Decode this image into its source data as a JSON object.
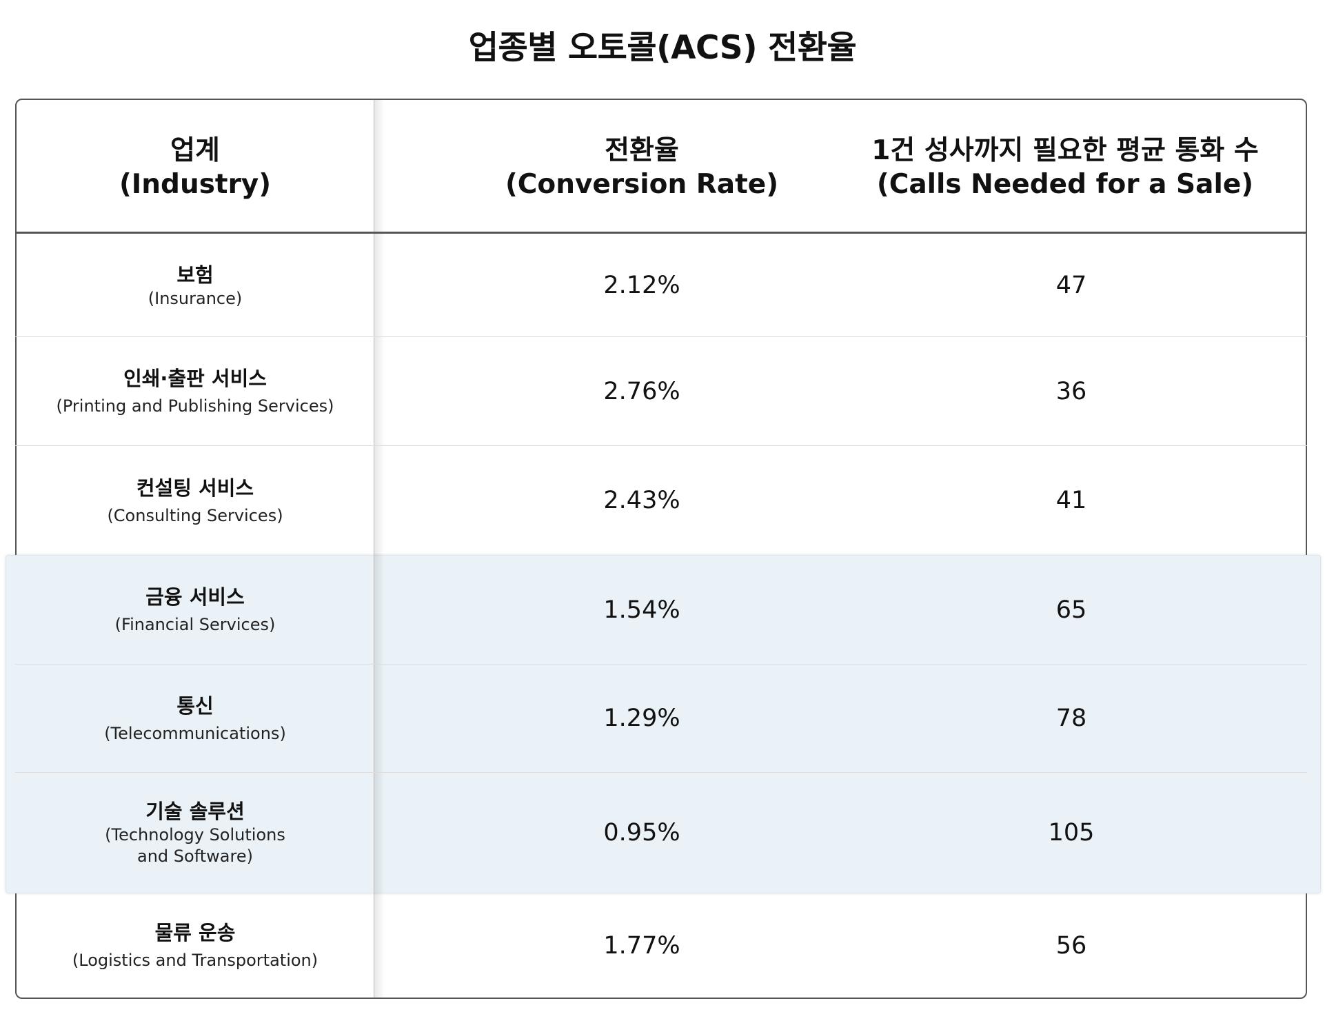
{
  "title": "업종별 오토콜(ACS) 전환율",
  "headers": {
    "industry": {
      "kr": "업계",
      "en": "(Industry)"
    },
    "rate": {
      "kr": "전환율",
      "en": "(Conversion Rate)"
    },
    "calls": {
      "kr": "1건 성사까지 필요한 평균 통화 수",
      "en": "(Calls Needed for a Sale)"
    }
  },
  "rows": [
    {
      "kr": "보험",
      "en": "(Insurance)",
      "rate": "2.12%",
      "calls": "47"
    },
    {
      "kr": "인쇄·출판 서비스",
      "en": "(Printing and Publishing Services)",
      "rate": "2.76%",
      "calls": "36"
    },
    {
      "kr": "컨설팅 서비스",
      "en": "(Consulting Services)",
      "rate": "2.43%",
      "calls": "41"
    },
    {
      "kr": "금융 서비스",
      "en": "(Financial Services)",
      "rate": "1.54%",
      "calls": "65"
    },
    {
      "kr": "통신",
      "en": "(Telecommunications)",
      "rate": "1.29%",
      "calls": "78"
    },
    {
      "kr": "기술 솔루션",
      "en_1": "(Technology Solutions",
      "en_2": "and Software)",
      "rate": "0.95%",
      "calls": "105"
    },
    {
      "kr": "물류 운송",
      "en": "(Logistics and Transportation)",
      "rate": "1.77%",
      "calls": "56"
    }
  ],
  "highlight_color": "#eaf2f8",
  "chart_data": {
    "type": "table",
    "title": "업종별 오토콜(ACS) 전환율",
    "columns": [
      "업계 (Industry)",
      "전환율 (Conversion Rate)",
      "1건 성사까지 필요한 평균 통화 수 (Calls Needed for a Sale)"
    ],
    "rows": [
      [
        "보험 (Insurance)",
        "2.12%",
        47
      ],
      [
        "인쇄·출판 서비스 (Printing and Publishing Services)",
        "2.76%",
        36
      ],
      [
        "컨설팅 서비스 (Consulting Services)",
        "2.43%",
        41
      ],
      [
        "금융 서비스 (Financial Services)",
        "1.54%",
        65
      ],
      [
        "통신 (Telecommunications)",
        "1.29%",
        78
      ],
      [
        "기술 솔루션 (Technology Solutions and Software)",
        "0.95%",
        105
      ],
      [
        "물류 운송 (Logistics and Transportation)",
        "1.77%",
        56
      ]
    ],
    "highlighted_rows": [
      "금융 서비스 (Financial Services)",
      "통신 (Telecommunications)",
      "기술 솔루션 (Technology Solutions and Software)"
    ]
  }
}
